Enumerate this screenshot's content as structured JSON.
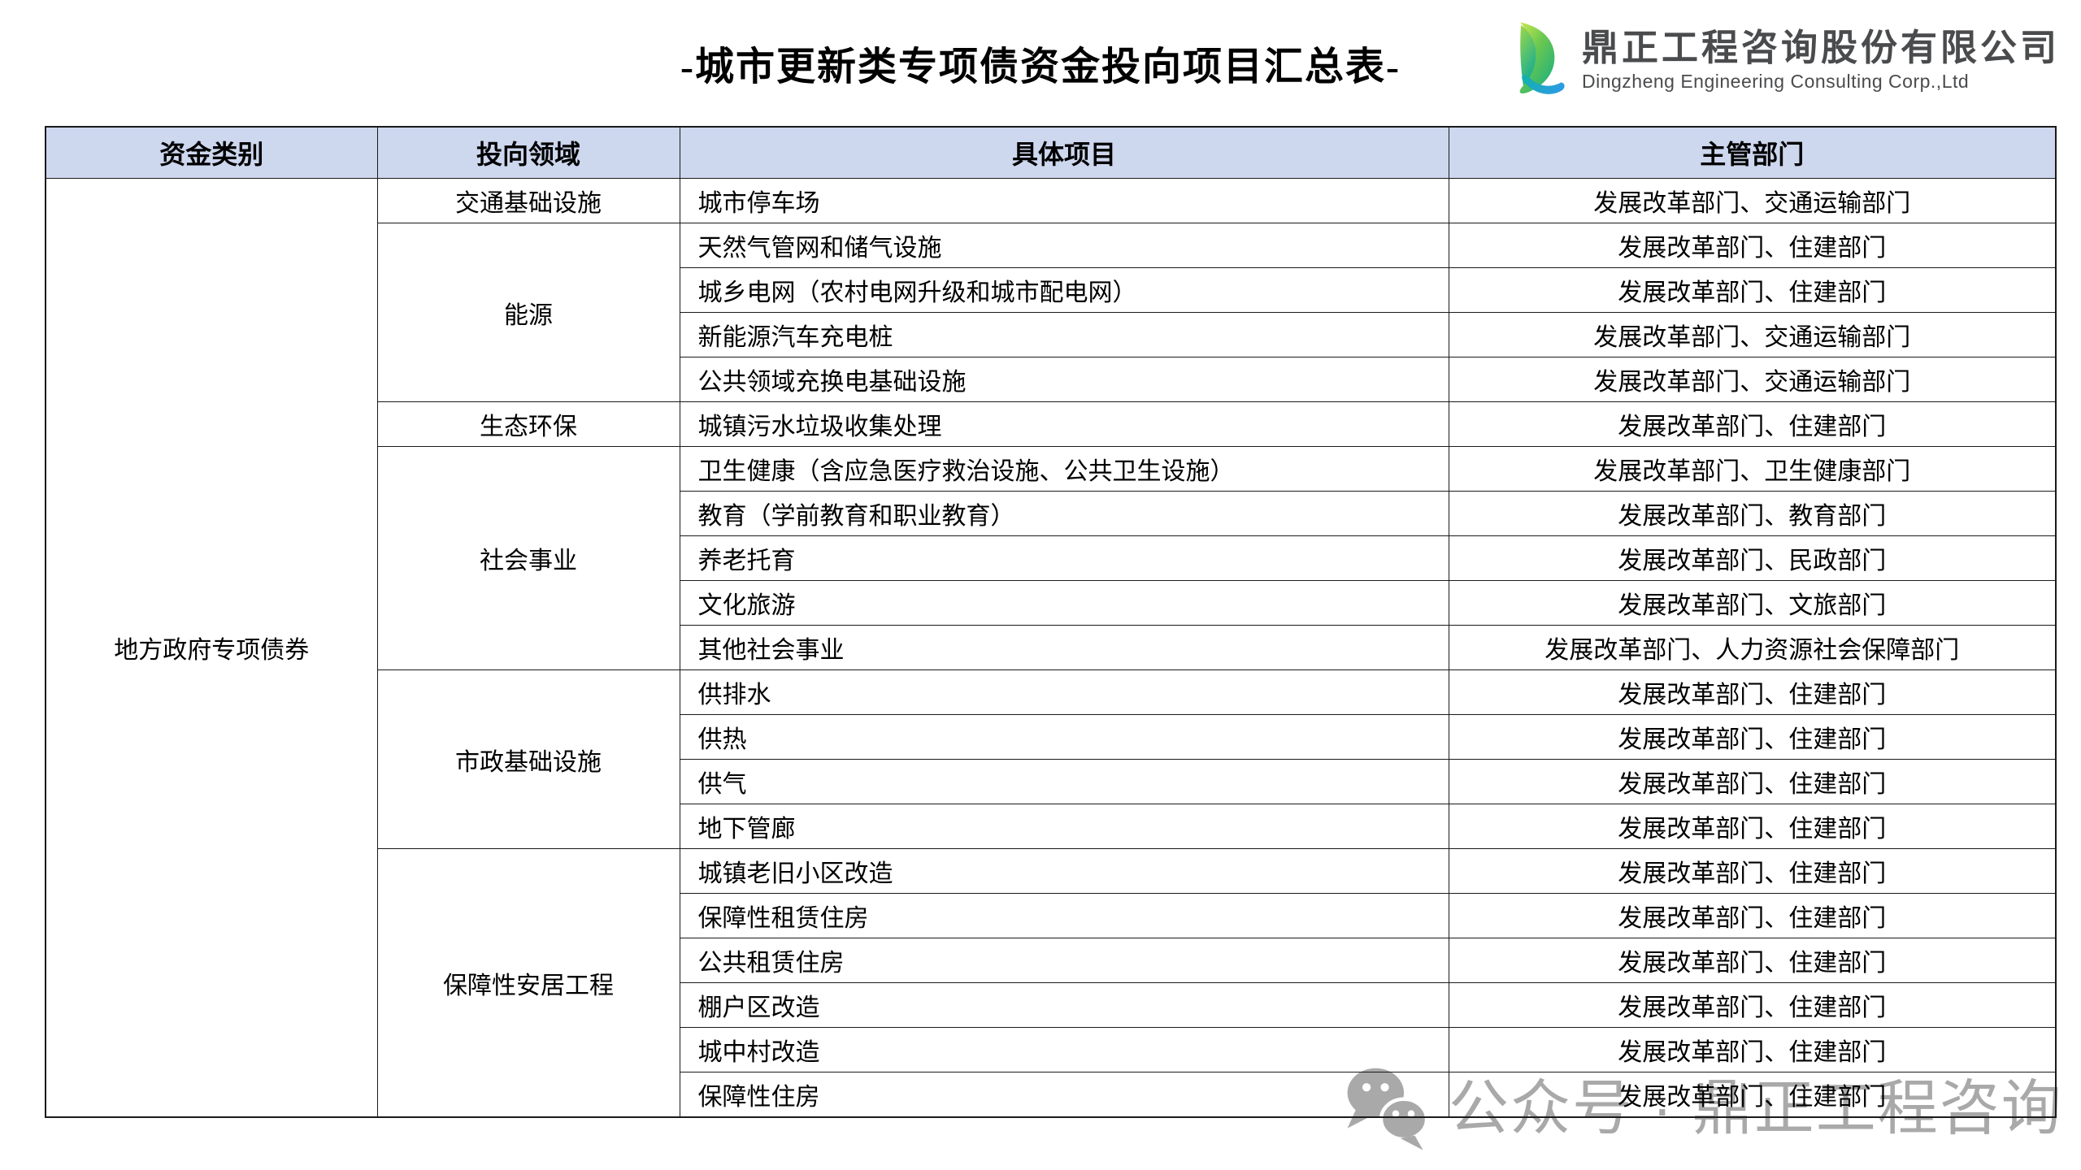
{
  "title": "-城市更新类专项债资金投向项目汇总表-",
  "logo": {
    "company_cn": "鼎正工程咨询股份有限公司",
    "company_en": "Dingzheng Engineering Consulting Corp.,Ltd",
    "icon": "dingzheng-logo-icon",
    "colors": {
      "lime": "#bfe14e",
      "green": "#2eb267",
      "teal": "#12b2a6",
      "blue": "#2b9ce2",
      "text": "#4a4b4d"
    }
  },
  "table": {
    "headers": [
      "资金类别",
      "投向领域",
      "具体项目",
      "主管部门"
    ],
    "fund_category": "地方政府专项债券",
    "header_bg": "#cdd7ee",
    "border_color": "#1a1a1a",
    "groups": [
      {
        "area": "交通基础设施",
        "rows": [
          {
            "project": "城市停车场",
            "department": "发展改革部门、交通运输部门"
          }
        ]
      },
      {
        "area": "能源",
        "rows": [
          {
            "project": "天然气管网和储气设施",
            "department": "发展改革部门、住建部门"
          },
          {
            "project": "城乡电网（农村电网升级和城市配电网）",
            "department": "发展改革部门、住建部门"
          },
          {
            "project": "新能源汽车充电桩",
            "department": "发展改革部门、交通运输部门"
          },
          {
            "project": "公共领域充换电基础设施",
            "department": "发展改革部门、交通运输部门"
          }
        ]
      },
      {
        "area": "生态环保",
        "rows": [
          {
            "project": "城镇污水垃圾收集处理",
            "department": "发展改革部门、住建部门"
          }
        ]
      },
      {
        "area": "社会事业",
        "rows": [
          {
            "project": "卫生健康（含应急医疗救治设施、公共卫生设施）",
            "department": "发展改革部门、卫生健康部门"
          },
          {
            "project": "教育（学前教育和职业教育）",
            "department": "发展改革部门、教育部门"
          },
          {
            "project": "养老托育",
            "department": "发展改革部门、民政部门"
          },
          {
            "project": "文化旅游",
            "department": "发展改革部门、文旅部门"
          },
          {
            "project": "其他社会事业",
            "department": "发展改革部门、人力资源社会保障部门"
          }
        ]
      },
      {
        "area": "市政基础设施",
        "rows": [
          {
            "project": "供排水",
            "department": "发展改革部门、住建部门"
          },
          {
            "project": "供热",
            "department": "发展改革部门、住建部门"
          },
          {
            "project": "供气",
            "department": "发展改革部门、住建部门"
          },
          {
            "project": "地下管廊",
            "department": "发展改革部门、住建部门"
          }
        ]
      },
      {
        "area": "保障性安居工程",
        "rows": [
          {
            "project": "城镇老旧小区改造",
            "department": "发展改革部门、住建部门"
          },
          {
            "project": "保障性租赁住房",
            "department": "发展改革部门、住建部门"
          },
          {
            "project": "公共租赁住房",
            "department": "发展改革部门、住建部门"
          },
          {
            "project": "棚户区改造",
            "department": "发展改革部门、住建部门"
          },
          {
            "project": "城中村改造",
            "department": "发展改革部门、住建部门"
          },
          {
            "project": "保障性住房",
            "department": "发展改革部门、住建部门"
          }
        ]
      }
    ]
  },
  "watermark": {
    "icon": "wechat-icon",
    "text": "公众号 · 鼎正工程咨询",
    "color": "#a9a9a9"
  }
}
